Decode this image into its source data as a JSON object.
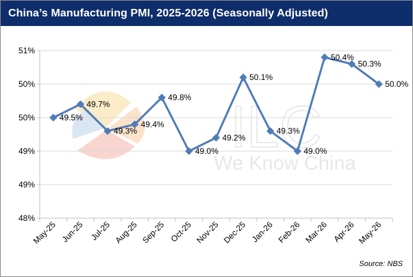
{
  "title": "China’s Manufacturing PMI, 2025-2026 (Seasonally Adjusted)",
  "source": "Source: NBS",
  "watermark": {
    "brand": "ILC",
    "tagline": "We Know China"
  },
  "colors": {
    "title_bar": "#0e2d6b",
    "line": "#4f7cb8",
    "grid": "#d9d9d9",
    "axis": "#bfbfbf"
  },
  "chart_data": {
    "type": "line",
    "title": "China’s Manufacturing PMI, 2025-2026 (Seasonally Adjusted)",
    "xlabel": "",
    "ylabel": "",
    "grid": true,
    "legend": "none",
    "categories": [
      "May-25",
      "Jun-25",
      "Jul-25",
      "Aug-25",
      "Sep-25",
      "Oct-25",
      "Nov-25",
      "Dec-25",
      "Jan-26",
      "Feb-26",
      "Mar-26",
      "Apr-26",
      "May-26"
    ],
    "y_tick_labels": [
      "51%",
      "50%",
      "50%",
      "49%",
      "49%",
      "48%"
    ],
    "series": [
      {
        "values": [
          49.5,
          49.7,
          49.3,
          49.4,
          49.8,
          49.0,
          49.2,
          50.1,
          49.3,
          49.0,
          50.4,
          50.3,
          50.0
        ],
        "labels": [
          "49.5%",
          "49.7%",
          "49.3%",
          "49.4%",
          "49.8%",
          "49.0%",
          "49.2%",
          "50.1%",
          "49.3%",
          "49.0%",
          "50.4%",
          "50.3%",
          "50.0%"
        ]
      }
    ],
    "ylim": [
      48.0,
      50.5
    ]
  }
}
